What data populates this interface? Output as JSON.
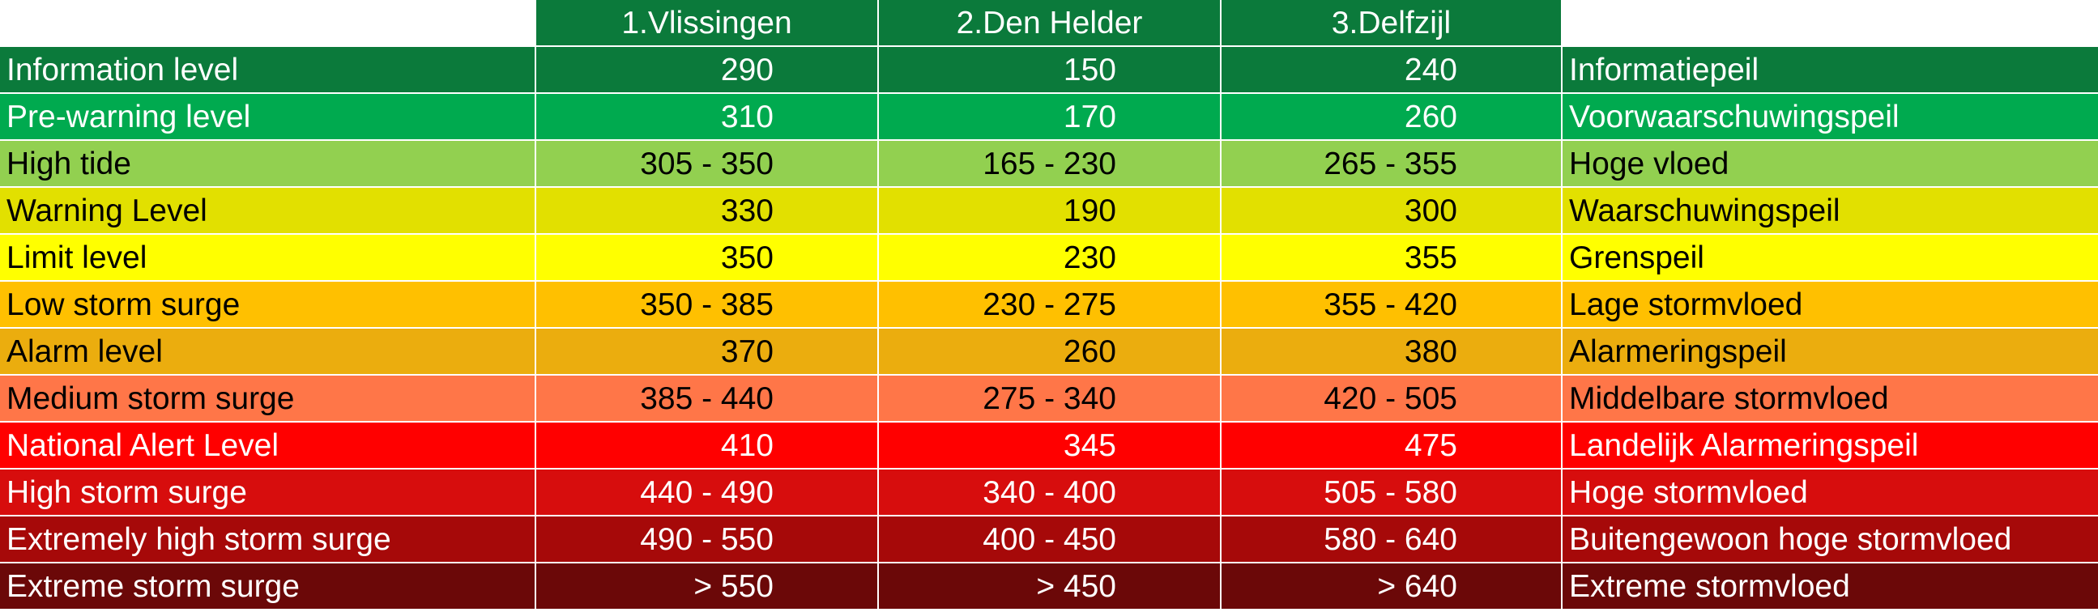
{
  "header": {
    "stations": [
      "1.Vlissingen",
      "2.Den Helder",
      "3.Delfzijl"
    ]
  },
  "rows": [
    {
      "en": "Information level",
      "vlissingen": "290",
      "den_helder": "150",
      "delfzijl": "240",
      "nl": "Informatiepeil",
      "bg": "#0b7a3b",
      "fg": "#ffffff"
    },
    {
      "en": "Pre-warning level",
      "vlissingen": "310",
      "den_helder": "170",
      "delfzijl": "260",
      "nl": "Voorwaarschuwingspeil",
      "bg": "#00aa4f",
      "fg": "#ffffff"
    },
    {
      "en": "High tide",
      "vlissingen": "305 - 350",
      "den_helder": "165 - 230",
      "delfzijl": "265 - 355",
      "nl": "Hoge vloed",
      "bg": "#92d050",
      "fg": "#000000"
    },
    {
      "en": "Warning Level",
      "vlissingen": "330",
      "den_helder": "190",
      "delfzijl": "300",
      "nl": "Waarschuwingspeil",
      "bg": "#e2e000",
      "fg": "#000000"
    },
    {
      "en": "Limit level",
      "vlissingen": "350",
      "den_helder": "230",
      "delfzijl": "355",
      "nl": "Grenspeil",
      "bg": "#ffff00",
      "fg": "#000000"
    },
    {
      "en": "Low storm surge",
      "vlissingen": "350 - 385",
      "den_helder": "230 - 275",
      "delfzijl": "355 - 420",
      "nl": "Lage stormvloed",
      "bg": "#ffc000",
      "fg": "#000000"
    },
    {
      "en": "Alarm level",
      "vlissingen": "370",
      "den_helder": "260",
      "delfzijl": "380",
      "nl": "Alarmeringspeil",
      "bg": "#ebad0e",
      "fg": "#000000"
    },
    {
      "en": "Medium storm surge",
      "vlissingen": "385 - 440",
      "den_helder": "275 - 340",
      "delfzijl": "420 - 505",
      "nl": "Middelbare stormvloed",
      "bg": "#ff7648",
      "fg": "#000000"
    },
    {
      "en": "National Alert Level",
      "vlissingen": "410",
      "den_helder": "345",
      "delfzijl": "475",
      "nl": "Landelijk Alarmeringspeil",
      "bg": "#ff0000",
      "fg": "#ffffff"
    },
    {
      "en": "High storm surge",
      "vlissingen": "440 - 490",
      "den_helder": "340 - 400",
      "delfzijl": "505 - 580",
      "nl": "Hoge stormvloed",
      "bg": "#d70d0d",
      "fg": "#ffffff"
    },
    {
      "en": "Extremely high storm surge",
      "vlissingen": "490 - 550",
      "den_helder": "400 - 450",
      "delfzijl": "580 - 640",
      "nl": "Buitengewoon hoge stormvloed",
      "bg": "#a60909",
      "fg": "#ffffff"
    },
    {
      "en": "Extreme storm surge",
      "vlissingen": "> 550",
      "den_helder": "> 450",
      "delfzijl": "> 640",
      "nl": "Extreme stormvloed",
      "bg": "#6b0808",
      "fg": "#ffffff"
    }
  ]
}
